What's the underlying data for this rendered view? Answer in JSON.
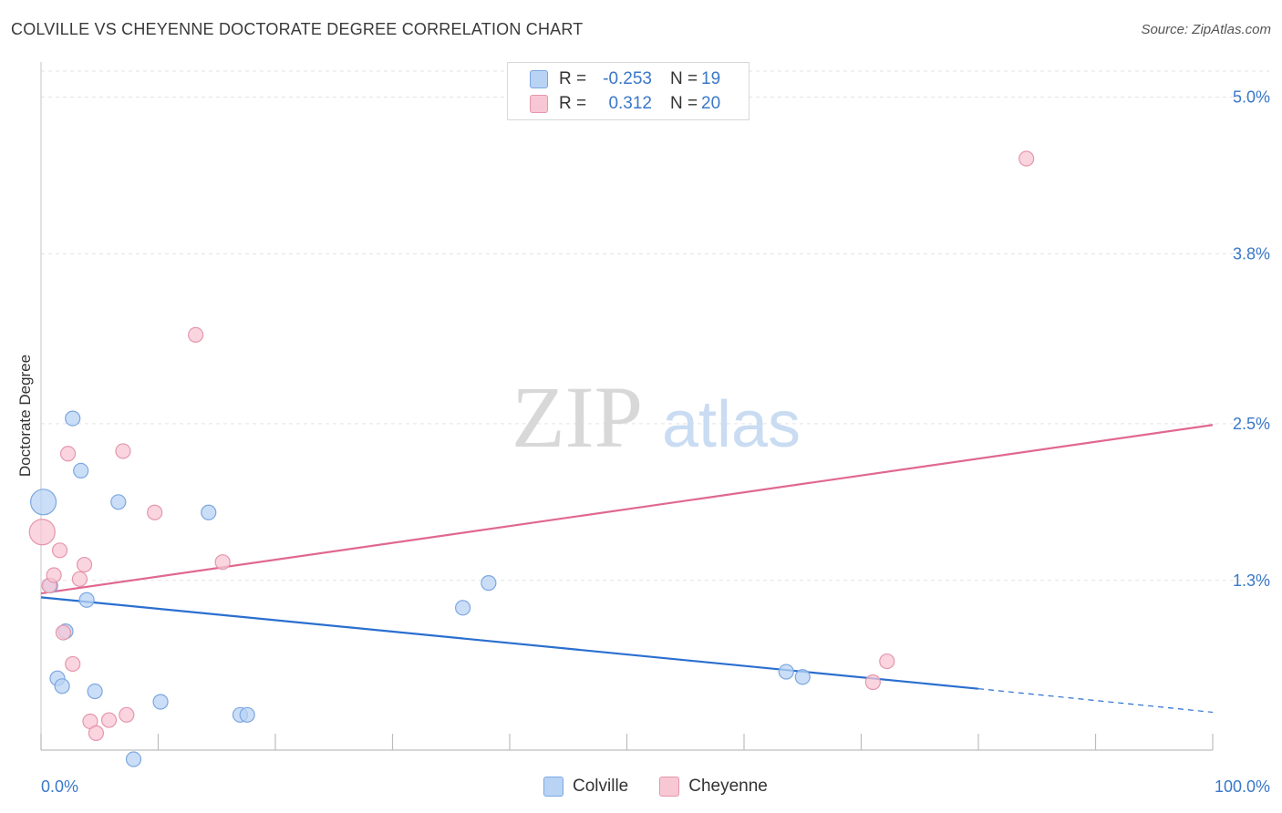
{
  "header": {
    "title": "COLVILLE VS CHEYENNE DOCTORATE DEGREE CORRELATION CHART",
    "source": "Source: ZipAtlas.com"
  },
  "watermark": {
    "zip": "ZIP",
    "atlas": "atlas"
  },
  "legend": {
    "rows": [
      {
        "r_label": "R =",
        "r_value": "-0.253",
        "n_label": "N =",
        "n_value": "19"
      },
      {
        "r_label": "R =",
        "r_value": "0.312",
        "n_label": "N =",
        "n_value": "20"
      }
    ]
  },
  "bottom_legend": {
    "colville": "Colville",
    "cheyenne": "Cheyenne"
  },
  "colors": {
    "colville_fill": "#b9d3f4",
    "colville_stroke": "#7ba7e0",
    "colville_line": "#2a6fcf",
    "cheyenne_fill": "#f8c7d4",
    "cheyenne_stroke": "#e596ad",
    "cheyenne_line": "#e0688f",
    "tick_label": "#3a78c8",
    "grid": "#e3e3e3"
  },
  "chart_data": {
    "type": "scatter",
    "title": "COLVILLE VS CHEYENNE DOCTORATE DEGREE CORRELATION CHART",
    "xlabel": "",
    "ylabel": "Doctorate Degree",
    "xlim": [
      0,
      100
    ],
    "ylim": [
      0,
      5.2
    ],
    "x_tick_labels": [
      "0.0%",
      "100.0%"
    ],
    "y_ticks": [
      1.3,
      2.5,
      3.8,
      5.0
    ],
    "y_tick_labels": [
      "1.3%",
      "2.5%",
      "3.8%",
      "5.0%"
    ],
    "grid": true,
    "legend": "top-center",
    "series": [
      {
        "name": "Colville",
        "r": -0.253,
        "n": 19,
        "points": [
          {
            "x": 0.2,
            "y": 1.9,
            "s": "large"
          },
          {
            "x": 0.8,
            "y": 1.26
          },
          {
            "x": 2.7,
            "y": 2.54
          },
          {
            "x": 3.4,
            "y": 2.14
          },
          {
            "x": 3.9,
            "y": 1.15
          },
          {
            "x": 2.1,
            "y": 0.91
          },
          {
            "x": 1.4,
            "y": 0.55
          },
          {
            "x": 1.8,
            "y": 0.49
          },
          {
            "x": 4.6,
            "y": 0.45
          },
          {
            "x": 6.6,
            "y": 1.9
          },
          {
            "x": 10.2,
            "y": 0.37
          },
          {
            "x": 14.3,
            "y": 1.82
          },
          {
            "x": 17.0,
            "y": 0.27
          },
          {
            "x": 17.6,
            "y": 0.27
          },
          {
            "x": 36.0,
            "y": 1.09
          },
          {
            "x": 38.2,
            "y": 1.28
          },
          {
            "x": 63.6,
            "y": 0.6
          },
          {
            "x": 65.0,
            "y": 0.56
          },
          {
            "x": 7.9,
            "y": -0.07
          }
        ],
        "trend": {
          "x0": 0,
          "y0": 1.17,
          "x1": 80,
          "y1": 0.47,
          "dash_x1": 100,
          "dash_y1": 0.29
        }
      },
      {
        "name": "Cheyenne",
        "r": 0.312,
        "n": 20,
        "points": [
          {
            "x": 0.1,
            "y": 1.67,
            "s": "large"
          },
          {
            "x": 0.7,
            "y": 1.26
          },
          {
            "x": 1.1,
            "y": 1.34
          },
          {
            "x": 1.6,
            "y": 1.53
          },
          {
            "x": 2.3,
            "y": 2.27
          },
          {
            "x": 3.3,
            "y": 1.31
          },
          {
            "x": 3.7,
            "y": 1.42
          },
          {
            "x": 1.9,
            "y": 0.9
          },
          {
            "x": 2.7,
            "y": 0.66
          },
          {
            "x": 4.2,
            "y": 0.22
          },
          {
            "x": 4.7,
            "y": 0.13
          },
          {
            "x": 5.8,
            "y": 0.23
          },
          {
            "x": 7.3,
            "y": 0.27
          },
          {
            "x": 7.0,
            "y": 2.29
          },
          {
            "x": 9.7,
            "y": 1.82
          },
          {
            "x": 13.2,
            "y": 3.18
          },
          {
            "x": 15.5,
            "y": 1.44
          },
          {
            "x": 71.0,
            "y": 0.52
          },
          {
            "x": 72.2,
            "y": 0.68
          },
          {
            "x": 84.1,
            "y": 4.53
          }
        ],
        "trend": {
          "x0": 0,
          "y0": 1.2,
          "x1": 100,
          "y1": 2.49
        }
      }
    ]
  }
}
